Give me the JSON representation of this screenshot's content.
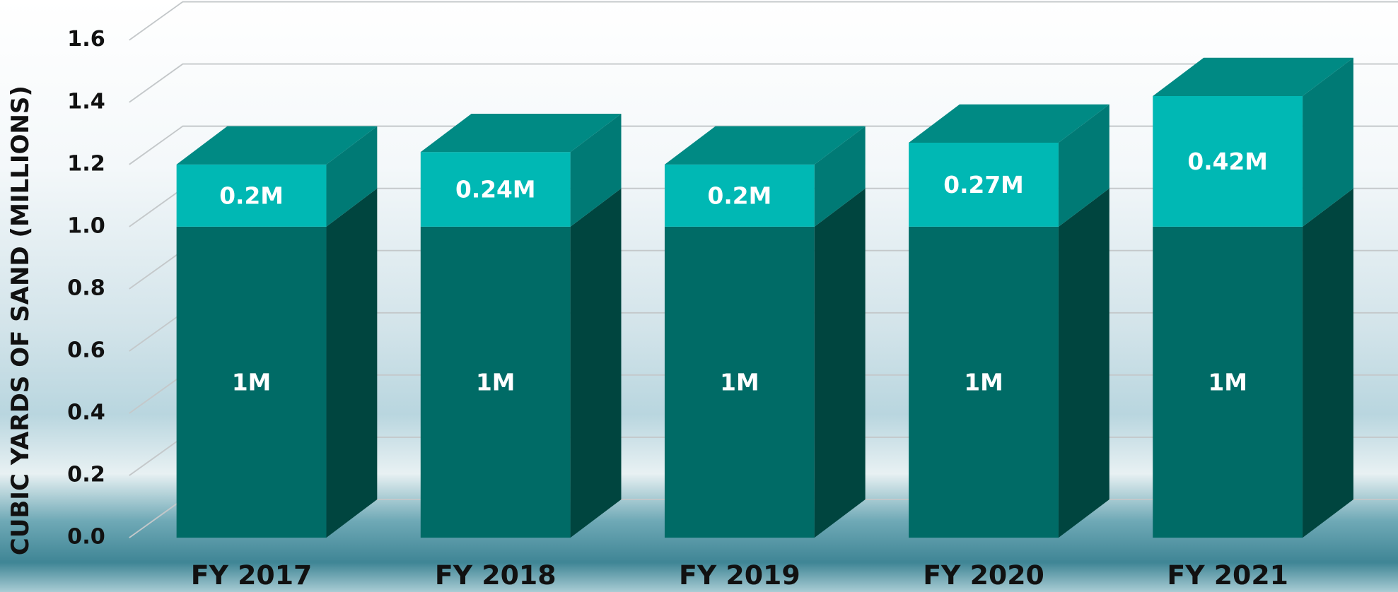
{
  "chart_data": {
    "type": "bar3d_stacked",
    "y_label": "CUBIC YARDS OF SAND (MILLIONS)",
    "categories": [
      "FY 2017",
      "FY 2018",
      "FY 2019",
      "FY 2020",
      "FY 2021"
    ],
    "series": [
      {
        "color": "#006b66",
        "side_color": "#00453f",
        "top_color": "#00857f",
        "values": [
          1,
          1,
          1,
          1,
          1
        ],
        "value_labels": [
          "1M",
          "1M",
          "1M",
          "1M",
          "1M"
        ]
      },
      {
        "color": "#00b8b4",
        "side_color": "#007a75",
        "top_color": "#008a84",
        "values": [
          0.2,
          0.24,
          0.2,
          0.27,
          0.42
        ],
        "value_labels": [
          "0.2M",
          "0.24M",
          "0.2M",
          "0.27M",
          "0.42M"
        ]
      }
    ],
    "ylim": [
      0,
      1.6
    ],
    "yticks": [
      {
        "value": 0,
        "label": "0.0"
      },
      0.2,
      0.4,
      0.6,
      0.8,
      {
        "value": 1,
        "label": "1.0"
      },
      1.2,
      1.4,
      1.6
    ],
    "grid": true
  }
}
